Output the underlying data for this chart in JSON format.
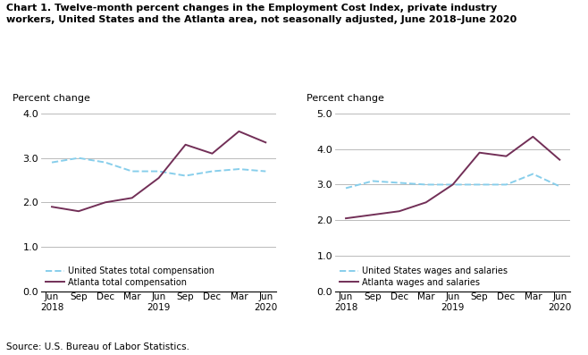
{
  "title": "Chart 1. Twelve-month percent changes in the Employment Cost Index, private industry\nworkers, United States and the Atlanta area, not seasonally adjusted, June 2018–June 2020",
  "source": "Source: U.S. Bureau of Labor Statistics.",
  "ylabel": "Percent change",
  "x_positions": [
    0,
    1,
    2,
    3,
    4,
    5,
    6,
    7,
    8
  ],
  "left_us_total": [
    2.9,
    3.0,
    2.9,
    2.7,
    2.7,
    2.6,
    2.7,
    2.75,
    2.7
  ],
  "left_atl_total": [
    1.9,
    1.8,
    2.0,
    2.1,
    2.55,
    3.3,
    3.1,
    3.6,
    3.35
  ],
  "left_ylim": [
    0.0,
    4.0
  ],
  "left_yticks": [
    0.0,
    1.0,
    2.0,
    3.0,
    4.0
  ],
  "left_legend1": "United States total compensation",
  "left_legend2": "Atlanta total compensation",
  "right_us_wages": [
    2.9,
    3.1,
    3.05,
    3.0,
    3.0,
    3.0,
    3.0,
    3.3,
    2.95
  ],
  "right_atl_wages": [
    2.05,
    2.15,
    2.25,
    2.5,
    3.0,
    3.9,
    3.8,
    4.35,
    3.7
  ],
  "right_ylim": [
    0.0,
    5.0
  ],
  "right_yticks": [
    0.0,
    1.0,
    2.0,
    3.0,
    4.0,
    5.0
  ],
  "right_legend1": "United States wages and salaries",
  "right_legend2": "Atlanta wages and salaries",
  "us_color": "#87CEEB",
  "atl_color": "#722F57",
  "background_color": "#ffffff",
  "tick_labels": [
    "Jun\n2018",
    "Sep",
    "Dec",
    "Mar",
    "Jun\n2019",
    "Sep",
    "Dec",
    "Mar",
    "Jun\n2020"
  ]
}
